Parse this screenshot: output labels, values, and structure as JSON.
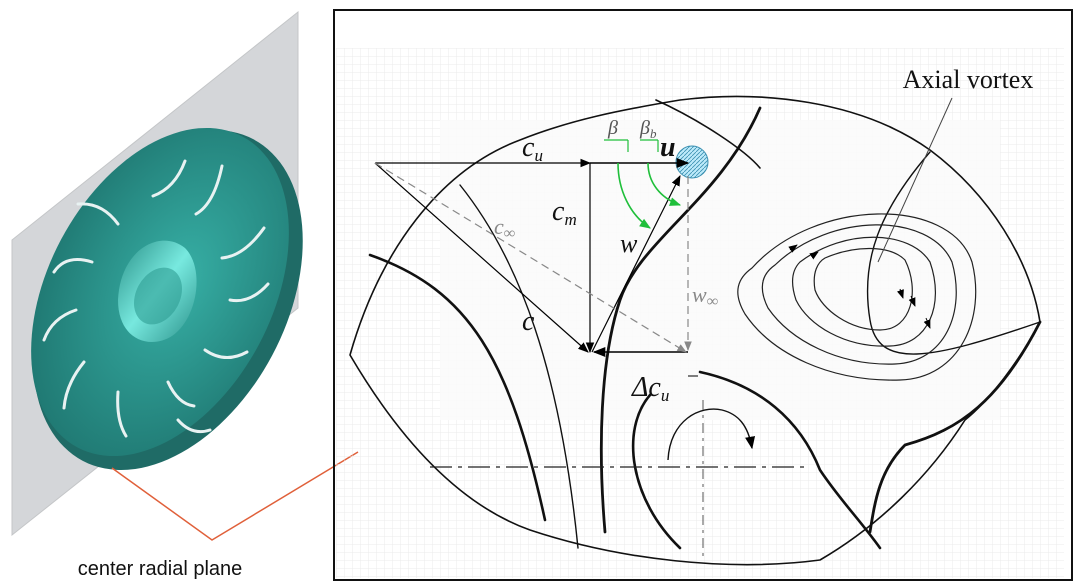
{
  "left_panel": {
    "caption": "center radial plane",
    "colors": {
      "impeller": "#2a8f88",
      "impeller_highlight": "#3fcfc4",
      "plane": "#d4d6d9",
      "pointer": "#e0603a"
    }
  },
  "diagram": {
    "annotation": "Axial vortex",
    "vectors": {
      "cu": "c",
      "cu_sub": "u",
      "u": "u",
      "cm": "c",
      "cm_sub": "m",
      "w": "w",
      "c": "c",
      "c_inf": "c",
      "c_inf_sub": "∞",
      "w_inf": "w",
      "w_inf_sub": "∞",
      "delta_cu": "Δc",
      "delta_cu_sub": "u"
    },
    "angles": {
      "beta": "β",
      "beta_b": "β",
      "beta_b_sub": "b"
    },
    "colors": {
      "angle_arcs": "#1fbf3a",
      "angle_labels": "#555555",
      "hub": "#7fd3ea",
      "frame": "#111111",
      "grid": "#e9e9e9"
    }
  }
}
